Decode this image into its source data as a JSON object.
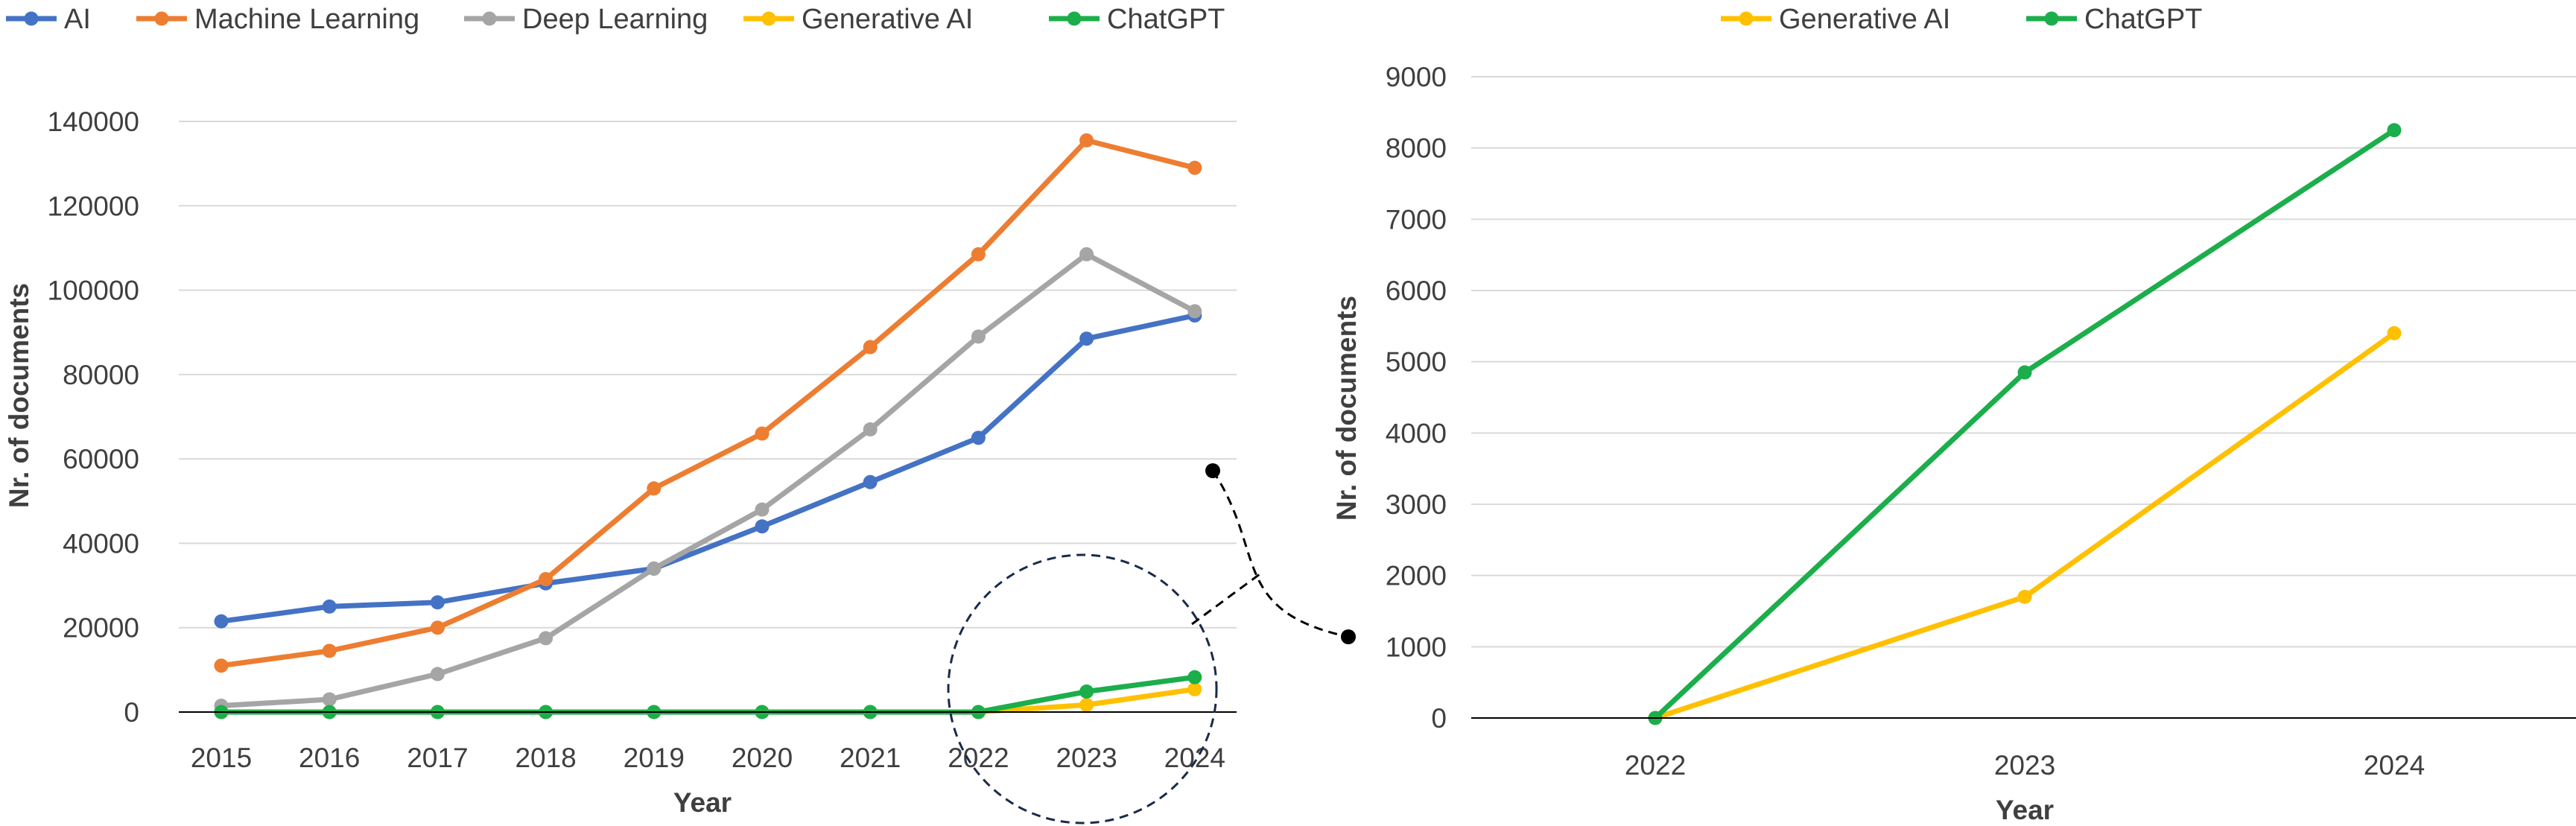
{
  "colors": {
    "AI": "#4472C4",
    "Machine Learning": "#ED7D31",
    "Deep Learning": "#A5A5A5",
    "Generative AI": "#FFC000",
    "ChatGPT": "#1BAE4B",
    "grid": "#d9d9d9",
    "axis": "#000000",
    "callout": "#1a2b4a"
  },
  "chart_data": [
    {
      "type": "line",
      "xlabel": "Year",
      "ylabel": "Nr. of documents",
      "ylim": [
        0,
        140000
      ],
      "yticks": [
        0,
        20000,
        40000,
        60000,
        80000,
        100000,
        120000,
        140000
      ],
      "ytick_labels": [
        "0",
        "20000",
        "40000",
        "60000",
        "80000",
        "100000",
        "120000",
        "140000"
      ],
      "categories": [
        "2015",
        "2016",
        "2017",
        "2018",
        "2019",
        "2020",
        "2021",
        "2022",
        "2023",
        "2024"
      ],
      "legend_position": "top-left",
      "grid": true,
      "series": [
        {
          "name": "AI",
          "values": [
            21500,
            25000,
            26000,
            30500,
            34000,
            44000,
            54500,
            65000,
            88500,
            94000
          ]
        },
        {
          "name": "Machine Learning",
          "values": [
            11000,
            14500,
            20000,
            31500,
            53000,
            66000,
            86500,
            108500,
            135500,
            129000
          ]
        },
        {
          "name": "Deep Learning",
          "values": [
            1500,
            3000,
            9000,
            17500,
            34000,
            48000,
            67000,
            89000,
            108500,
            95000
          ]
        },
        {
          "name": "Generative AI",
          "values": [
            0,
            0,
            0,
            0,
            0,
            0,
            0,
            0,
            1700,
            5400
          ]
        },
        {
          "name": "ChatGPT",
          "values": [
            0,
            0,
            0,
            0,
            0,
            0,
            0,
            0,
            4850,
            8250
          ]
        }
      ],
      "annotations": [
        "dashed circle highlighting 2022-2024 for Generative AI and ChatGPT, linked by dashed arrow to zoomed chart"
      ]
    },
    {
      "type": "line",
      "xlabel": "Year",
      "ylabel": "Nr. of documents",
      "ylim": [
        0,
        9000
      ],
      "yticks": [
        0,
        1000,
        2000,
        3000,
        4000,
        5000,
        6000,
        7000,
        8000,
        9000
      ],
      "ytick_labels": [
        "0",
        "1000",
        "2000",
        "3000",
        "4000",
        "5000",
        "6000",
        "7000",
        "8000",
        "9000"
      ],
      "categories": [
        "2022",
        "2023",
        "2024"
      ],
      "legend_position": "top-center",
      "grid": true,
      "series": [
        {
          "name": "Generative AI",
          "values": [
            0,
            1700,
            5400
          ]
        },
        {
          "name": "ChatGPT",
          "values": [
            0,
            4850,
            8250
          ]
        }
      ]
    }
  ]
}
